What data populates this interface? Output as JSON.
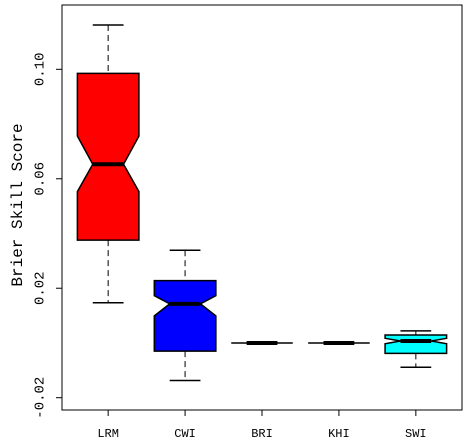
{
  "chart_data": {
    "type": "boxplot",
    "ylabel": "Brier Skill Score",
    "categories": [
      "LRM",
      "CWI",
      "BRI",
      "KHI",
      "SWI"
    ],
    "colors": [
      "#ff0000",
      "#0000ff",
      "#ffffff",
      "#ffffff",
      "#00ffff"
    ],
    "whisker_low": [
      0.0147,
      -0.0137,
      0.0,
      0.0,
      -0.0089
    ],
    "q1": [
      0.0376,
      -0.003,
      0.0,
      0.0,
      -0.0038
    ],
    "median": [
      0.0653,
      0.0143,
      0.0,
      0.0,
      0.0007
    ],
    "q3": [
      0.0985,
      0.0228,
      0.0,
      0.0,
      0.0029
    ],
    "whisker_high": [
      0.1162,
      0.0339,
      0.0,
      0.0,
      0.0044
    ],
    "notch_low": [
      0.0553,
      0.0099,
      0.0,
      0.0,
      -0.0003
    ],
    "notch_high": [
      0.0756,
      0.0173,
      0.0,
      0.0,
      0.0017
    ],
    "ylim": [
      -0.0245,
      0.1235
    ],
    "yticks": [
      {
        "value": -0.02,
        "label": "-0.02"
      },
      {
        "value": 0.02,
        "label": "0.02"
      },
      {
        "value": 0.06,
        "label": "0.06"
      },
      {
        "value": 0.1,
        "label": "0.10"
      }
    ],
    "xlim": [
      0.4,
      5.6
    ]
  }
}
